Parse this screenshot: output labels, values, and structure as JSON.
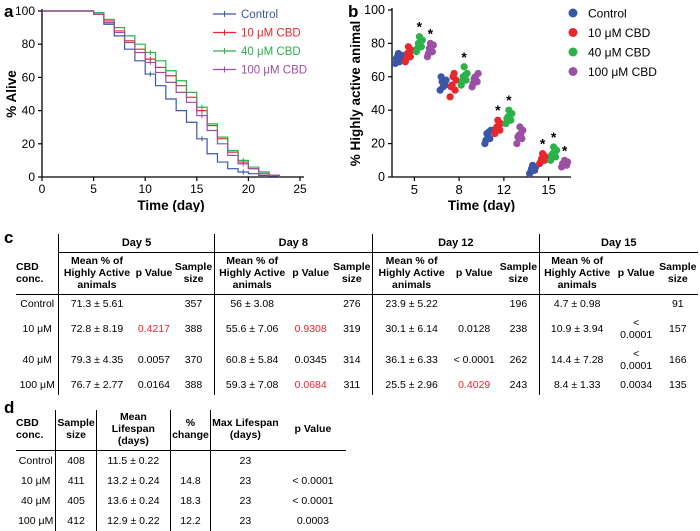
{
  "panels": {
    "a": "a",
    "b": "b",
    "c": "c",
    "d": "d"
  },
  "chart_data": [
    {
      "type": "line",
      "title": "",
      "xlabel": "Time (day)",
      "ylabel": "% Alive",
      "xlim": [
        0,
        25
      ],
      "ylim": [
        0,
        100
      ],
      "x_ticks": [
        "0",
        "5",
        "10",
        "15",
        "20",
        "25"
      ],
      "y_ticks": [
        "0",
        "20",
        "40",
        "60",
        "80",
        "100"
      ],
      "legend": "top-right",
      "series": [
        {
          "name": "Control",
          "color": "#3a56a6",
          "x": [
            0,
            4,
            5,
            6,
            7,
            8,
            9,
            10,
            11,
            12,
            13,
            14,
            15,
            16,
            17,
            18,
            19,
            20,
            21,
            22,
            23
          ],
          "y": [
            100,
            100,
            98,
            92,
            85,
            77,
            70,
            62,
            55,
            47,
            40,
            33,
            23,
            14,
            9,
            5,
            3,
            2,
            1,
            0.5,
            0
          ]
        },
        {
          "name": "10 μM CBD",
          "color": "#e8262d",
          "x": [
            0,
            4,
            5,
            6,
            7,
            8,
            9,
            10,
            11,
            12,
            13,
            14,
            15,
            16,
            17,
            18,
            19,
            20,
            21,
            22,
            23
          ],
          "y": [
            100,
            100,
            98,
            94,
            88,
            82,
            77,
            71,
            66,
            61,
            55,
            48,
            40,
            31,
            23,
            15,
            9,
            5,
            3,
            1,
            0
          ]
        },
        {
          "name": "40 μM CBD",
          "color": "#2ab34a",
          "x": [
            0,
            4,
            5,
            6,
            7,
            8,
            9,
            10,
            11,
            12,
            13,
            14,
            15,
            16,
            17,
            18,
            19,
            20,
            21,
            22,
            23
          ],
          "y": [
            100,
            100,
            99,
            95,
            90,
            85,
            80,
            75,
            70,
            64,
            58,
            51,
            42,
            32,
            24,
            16,
            10,
            6,
            3,
            1,
            0
          ]
        },
        {
          "name": "100 μM CBD",
          "color": "#9b4fa5",
          "x": [
            0,
            4,
            5,
            6,
            7,
            8,
            9,
            10,
            11,
            12,
            13,
            14,
            15,
            16,
            17,
            18,
            19,
            20,
            21,
            22,
            23
          ],
          "y": [
            100,
            100,
            98,
            93,
            87,
            81,
            75,
            69,
            63,
            57,
            51,
            45,
            37,
            28,
            20,
            13,
            8,
            5,
            2,
            1,
            0
          ]
        }
      ]
    },
    {
      "type": "scatter",
      "title": "",
      "xlabel": "Time (day)",
      "ylabel": "% Highly active animal",
      "categories": [
        "5",
        "8",
        "12",
        "15"
      ],
      "ylim": [
        0,
        100
      ],
      "y_ticks": [
        "0",
        "20",
        "40",
        "60",
        "80",
        "100"
      ],
      "legend": "top-right",
      "series": [
        {
          "name": "Control",
          "color": "#3a56a6",
          "points": [
            [
              68,
              70,
              72,
              73,
              74,
              71,
              69
            ],
            [
              52,
              55,
              57,
              58,
              54,
              60,
              56
            ],
            [
              20,
              23,
              26,
              28,
              24,
              22,
              27
            ],
            [
              2,
              4,
              5,
              6,
              7,
              3,
              5
            ]
          ]
        },
        {
          "name": "10 μM CBD",
          "color": "#e8262d",
          "points": [
            [
              69,
              72,
              74,
              76,
              78,
              71,
              73
            ],
            [
              48,
              52,
              55,
              58,
              60,
              54,
              62
            ],
            [
              26,
              28,
              30,
              32,
              34,
              29,
              31
            ],
            [
              8,
              10,
              11,
              12,
              14,
              9,
              13
            ]
          ]
        },
        {
          "name": "40 μM CBD",
          "color": "#2ab34a",
          "points": [
            [
              75,
              78,
              80,
              82,
              84,
              77,
              79
            ],
            [
              55,
              58,
              60,
              62,
              66,
              57,
              61
            ],
            [
              32,
              34,
              36,
              38,
              40,
              35,
              37
            ],
            [
              10,
              12,
              14,
              16,
              18,
              13,
              15
            ]
          ]
        },
        {
          "name": "100 μM CBD",
          "color": "#9b4fa5",
          "points": [
            [
              72,
              75,
              77,
              79,
              80,
              74,
              78
            ],
            [
              54,
              57,
              59,
              62,
              60,
              56,
              58
            ],
            [
              20,
              23,
              25,
              28,
              30,
              24,
              26
            ],
            [
              6,
              7,
              8,
              9,
              10,
              8,
              9
            ]
          ]
        }
      ],
      "significance": [
        {
          "day_index": 0,
          "series_index": 2,
          "label": "*"
        },
        {
          "day_index": 0,
          "series_index": 3,
          "label": "*"
        },
        {
          "day_index": 1,
          "series_index": 2,
          "label": "*"
        },
        {
          "day_index": 2,
          "series_index": 1,
          "label": "*"
        },
        {
          "day_index": 2,
          "series_index": 2,
          "label": "*"
        },
        {
          "day_index": 3,
          "series_index": 1,
          "label": "*"
        },
        {
          "day_index": 3,
          "series_index": 2,
          "label": "*"
        },
        {
          "day_index": 3,
          "series_index": 3,
          "label": "*"
        }
      ]
    }
  ],
  "table_c": {
    "corner": "CBD conc.",
    "days": [
      "Day 5",
      "Day 8",
      "Day 12",
      "Day 15"
    ],
    "subheaders": [
      "Mean % of Highly Active animals",
      "p Value",
      "Sample size"
    ],
    "rows": [
      {
        "conc": "Control",
        "cells": [
          [
            "71.3 ± 5.61",
            "",
            "357"
          ],
          [
            "56 ± 3.08",
            "",
            "276"
          ],
          [
            "23.9 ± 5.22",
            "",
            "196"
          ],
          [
            "4.7 ± 0.98",
            "",
            "91"
          ]
        ]
      },
      {
        "conc": "10 μM",
        "cells": [
          [
            "72.8 ± 8.19",
            "0.4217",
            "388"
          ],
          [
            "55.6 ± 7.06",
            "0.9308",
            "319"
          ],
          [
            "30.1 ± 6.14",
            "0.0128",
            "238"
          ],
          [
            "10.9 ± 3.94",
            "< 0.0001",
            "157"
          ]
        ]
      },
      {
        "conc": "40 μM",
        "cells": [
          [
            "79.3 ± 4.35",
            "0.0057",
            "370"
          ],
          [
            "60.8 ± 5.84",
            "0.0345",
            "314"
          ],
          [
            "36.1 ± 6.33",
            "< 0.0001",
            "262"
          ],
          [
            "14.4 ± 7.28",
            "< 0.0001",
            "166"
          ]
        ]
      },
      {
        "conc": "100 μM",
        "cells": [
          [
            "76.7 ± 2.77",
            "0.0164",
            "388"
          ],
          [
            "59.3 ± 7.08",
            "0.0684",
            "311"
          ],
          [
            "25.5 ± 2.96",
            "0.4029",
            "243"
          ],
          [
            "8.4 ± 1.33",
            "0.0034",
            "135"
          ]
        ]
      }
    ],
    "red_cells": [
      [
        1,
        0
      ],
      [
        1,
        1
      ],
      [
        3,
        1
      ],
      [
        3,
        2
      ]
    ],
    "red_color": "#e8262d"
  },
  "table_d": {
    "headers": [
      "CBD conc.",
      "Sample size",
      "Mean Lifespan (days)",
      "% change",
      "Max Lifespan (days)",
      "p Value"
    ],
    "rows": [
      [
        "Control",
        "408",
        "11.5 ± 0.22",
        "",
        "23",
        ""
      ],
      [
        "10 μM",
        "411",
        "13.2 ± 0.24",
        "14.8",
        "23",
        "< 0.0001"
      ],
      [
        "40 μM",
        "405",
        "13.6 ± 0.24",
        "18.3",
        "23",
        "< 0.0001"
      ],
      [
        "100 μM",
        "412",
        "12.9 ± 0.22",
        "12.2",
        "23",
        "0.0003"
      ]
    ]
  }
}
